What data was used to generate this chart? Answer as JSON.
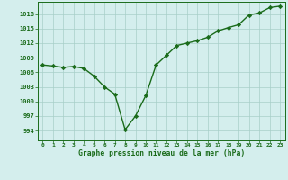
{
  "x": [
    0,
    1,
    2,
    3,
    4,
    5,
    6,
    7,
    8,
    9,
    10,
    11,
    12,
    13,
    14,
    15,
    16,
    17,
    18,
    19,
    20,
    21,
    22,
    23
  ],
  "y": [
    1007.5,
    1007.3,
    1007.0,
    1007.2,
    1006.8,
    1005.2,
    1003.0,
    1001.5,
    994.2,
    997.0,
    1001.2,
    1007.5,
    1009.5,
    1011.5,
    1012.0,
    1012.5,
    1013.2,
    1014.5,
    1015.2,
    1015.8,
    1017.8,
    1018.2,
    1019.3,
    1019.6
  ],
  "line_color": "#1a6b1a",
  "marker": "D",
  "markersize": 2.2,
  "linewidth": 1.0,
  "bg_color": "#d4eeed",
  "grid_color": "#a8cfc8",
  "title": "Graphe pression niveau de la mer (hPa)",
  "xlabel_ticks": [
    "0",
    "1",
    "2",
    "3",
    "4",
    "5",
    "6",
    "7",
    "8",
    "9",
    "10",
    "11",
    "12",
    "13",
    "14",
    "15",
    "16",
    "17",
    "18",
    "19",
    "20",
    "21",
    "22",
    "23"
  ],
  "yticks": [
    994,
    997,
    1000,
    1003,
    1006,
    1009,
    1012,
    1015,
    1018
  ],
  "ylim": [
    992.0,
    1020.5
  ],
  "xlim": [
    -0.5,
    23.5
  ]
}
